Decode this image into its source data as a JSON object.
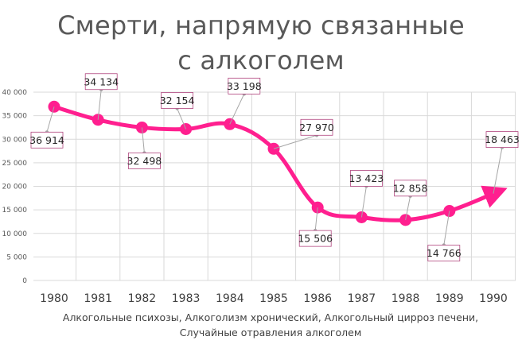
{
  "chart_data": {
    "type": "line",
    "title_line1": "Смерти, напрямую связанные",
    "title_line2": "с алкоголем",
    "xlabel_line1": "Алкогольные психозы, Алкоголизм хронический, Алкогольный цирроз печени,",
    "xlabel_line2": "Случайные отравления алкоголем",
    "ylabel": "",
    "categories": [
      "1980",
      "1981",
      "1982",
      "1983",
      "1984",
      "1985",
      "1986",
      "1987",
      "1988",
      "1989",
      "1990"
    ],
    "values": [
      36914,
      34134,
      32498,
      32154,
      33198,
      27970,
      15506,
      13423,
      12858,
      14766,
      18463
    ],
    "value_labels": [
      "36 914",
      "34 134",
      "32 498",
      "32 154",
      "33 198",
      "27 970",
      "15 506",
      "13 423",
      "12 858",
      "14 766",
      "18 463"
    ],
    "ylim": [
      0,
      40000
    ],
    "yticks": [
      0,
      5000,
      10000,
      15000,
      20000,
      25000,
      30000,
      35000,
      40000
    ],
    "ytick_labels": [
      "0",
      "5 000",
      "10 000",
      "15 000",
      "20 000",
      "25 000",
      "30 000",
      "35 000",
      "40 000"
    ],
    "grid": true,
    "line_color": "#ff1f8f",
    "grid_color": "#d9d9d9",
    "label_border_color": "#b0457e",
    "leader_color": "#a6a6a6",
    "last_point_arrow": true
  }
}
